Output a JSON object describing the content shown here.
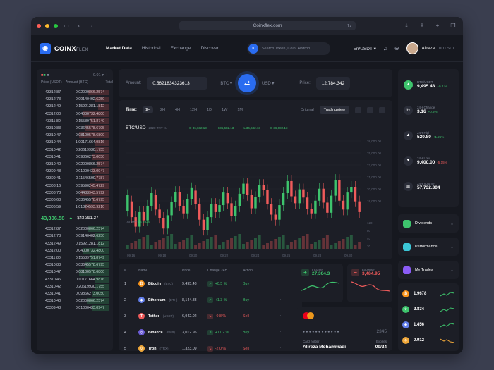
{
  "browser": {
    "url": "Coinxflex.com"
  },
  "brand": {
    "name": "COINX",
    "suffix": "FLEX"
  },
  "nav": {
    "items": [
      "Market Data",
      "Historical",
      "Exchange",
      "Discover"
    ],
    "active": 0
  },
  "search": {
    "placeholder": "Search Token, Coin, Airdrop"
  },
  "header": {
    "pair": "En/USDT",
    "username": "Alireza",
    "user_tag": "TID USDT"
  },
  "orderbook": {
    "precision": "0.01",
    "cols": [
      "Price (USDT)",
      "Amount (BTC)",
      "Total"
    ],
    "asks": [
      {
        "p": "43312.87",
        "a": "0.02000",
        "t": "866.2574",
        "d": 0.42
      },
      {
        "p": "43312.73",
        "a": "0.09140",
        "t": "402.6250",
        "d": 0.3
      },
      {
        "p": "43312.49",
        "a": "0.15921",
        "t": "281.1812",
        "d": 0.22
      },
      {
        "p": "43312.00",
        "a": "0.04000",
        "t": "732.4800",
        "d": 0.55
      },
      {
        "p": "43311.80",
        "a": "0.15589",
        "t": "751.8749",
        "d": 0.38
      },
      {
        "p": "43310.83",
        "a": "0.03645",
        "t": "578.6795",
        "d": 0.5
      },
      {
        "p": "43310.47",
        "a": "0.08100",
        "t": "578.6800",
        "d": 0.62
      },
      {
        "p": "43310.44",
        "a": "1.00171",
        "t": "664.9816",
        "d": 0.3
      },
      {
        "p": "43310.42",
        "a": "0.20619",
        "t": "930.1755",
        "d": 0.28
      },
      {
        "p": "43310.41",
        "a": "0.09866",
        "t": "273.0050",
        "d": 0.34
      },
      {
        "p": "43310.40",
        "a": "0.02000",
        "t": "866.2574",
        "d": 0.25
      },
      {
        "p": "43309.48",
        "a": "0.01000",
        "t": "433.0947",
        "d": 0.35
      },
      {
        "p": "43309.41",
        "a": "0.11546",
        "t": "500.7787",
        "d": 0.3
      },
      {
        "p": "43308.16",
        "a": "0.59590",
        "t": "245.4729",
        "d": 0.4
      },
      {
        "p": "43308.73",
        "a": "0.04483",
        "t": "943.5792",
        "d": 0.6
      },
      {
        "p": "43306.63",
        "a": "0.03645",
        "t": "578.6795",
        "d": 0.36
      },
      {
        "p": "43306.59",
        "a": "1.01324",
        "t": "593.9210",
        "d": 0.48
      }
    ],
    "last_price": "43,306.58",
    "last_usd": "$43,391.27",
    "bids": [
      {
        "p": "43312.87",
        "a": "0.02000",
        "t": "866.2574",
        "d": 0.42
      },
      {
        "p": "43312.73",
        "a": "0.09140",
        "t": "402.6250",
        "d": 0.3
      },
      {
        "p": "43312.49",
        "a": "0.15921",
        "t": "281.1812",
        "d": 0.22
      },
      {
        "p": "43312.00",
        "a": "0.04000",
        "t": "732.4800",
        "d": 0.55
      },
      {
        "p": "43311.80",
        "a": "0.15589",
        "t": "751.8749",
        "d": 0.38
      },
      {
        "p": "43310.83",
        "a": "0.03645",
        "t": "578.6795",
        "d": 0.5
      },
      {
        "p": "43310.47",
        "a": "0.08100",
        "t": "578.6800",
        "d": 0.62
      },
      {
        "p": "43310.46",
        "a": "0.01171",
        "t": "664.9816",
        "d": 0.3
      },
      {
        "p": "43310.42",
        "a": "0.20619",
        "t": "930.1755",
        "d": 0.28
      },
      {
        "p": "43310.41",
        "a": "0.09866",
        "t": "273.0050",
        "d": 0.34
      },
      {
        "p": "43310.40",
        "a": "0.02000",
        "t": "866.2574",
        "d": 0.45
      },
      {
        "p": "43309.48",
        "a": "0.01000",
        "t": "433.0947",
        "d": 0.35
      }
    ]
  },
  "converter": {
    "amount_label": "Amount:",
    "amount": "0.5621834323613",
    "from": "BTC",
    "to": "USD",
    "price_label": "Price:",
    "price": "12,784,342"
  },
  "chart": {
    "time_label": "Time:",
    "timeframes": [
      "1H",
      "2H",
      "4H",
      "12H",
      "1D",
      "1W",
      "1M"
    ],
    "active_tf": 0,
    "views": [
      "Original",
      "TradingView"
    ],
    "pair": "BTC/USD",
    "pair_sub": "2020 TRY %",
    "ohlc": [
      "O 36,682.13",
      "H 36,682.13",
      "L 36,682.13",
      "C 36,682.13"
    ],
    "vol_label": "Vol BTC",
    "vol_value": "65.2846",
    "y_ticks": [
      "38,000.00",
      "25,000.00",
      "22,000.00",
      "21,000.00",
      "20,000.00",
      "19,000.00"
    ],
    "vol_ticks": [
      "120",
      "80",
      "40",
      "20"
    ],
    "x_ticks": [
      "09.16",
      "09.18",
      "09.20",
      "09.22",
      "09.24",
      "09.26",
      "09.28",
      "09.30"
    ]
  },
  "chart_data": {
    "type": "candlestick",
    "ylim": [
      19000,
      38000
    ],
    "candles": [
      [
        24000,
        26500
      ],
      [
        25500,
        23000
      ],
      [
        23000,
        21500
      ],
      [
        21500,
        23800
      ],
      [
        23800,
        22500
      ],
      [
        22500,
        24800
      ],
      [
        24800,
        26800
      ],
      [
        26500,
        24200
      ],
      [
        24200,
        22900
      ],
      [
        22900,
        21200
      ],
      [
        21200,
        23300
      ],
      [
        23300,
        25400
      ],
      [
        25400,
        27000
      ],
      [
        27000,
        24800
      ],
      [
        24800,
        23600
      ],
      [
        23600,
        25800
      ],
      [
        25800,
        27600
      ],
      [
        27200,
        25100
      ],
      [
        25100,
        22600
      ],
      [
        22600,
        21000
      ],
      [
        21000,
        23000
      ],
      [
        23000,
        25100
      ],
      [
        25100,
        23800
      ],
      [
        23800,
        24900
      ],
      [
        24900,
        26900
      ],
      [
        26800,
        25200
      ],
      [
        25200,
        23200
      ],
      [
        23200,
        24700
      ],
      [
        24700,
        26700
      ],
      [
        26700,
        28300
      ],
      [
        28300,
        26500
      ],
      [
        26500,
        24400
      ],
      [
        24400,
        26200
      ],
      [
        26200,
        28100
      ],
      [
        28100,
        27300
      ],
      [
        27300,
        25100
      ],
      [
        25100,
        23400
      ],
      [
        23400,
        22600
      ],
      [
        22600,
        24900
      ],
      [
        24900,
        26800
      ],
      [
        26800,
        28700
      ],
      [
        28700,
        26300
      ],
      [
        26300,
        25200
      ],
      [
        25200,
        27400
      ],
      [
        27400,
        26100
      ],
      [
        26100,
        24300
      ],
      [
        24300,
        23600
      ],
      [
        23600,
        25600
      ],
      [
        25600,
        27500
      ],
      [
        27500,
        25300
      ],
      [
        25300,
        23700
      ],
      [
        23700,
        26400
      ],
      [
        26400,
        28900
      ],
      [
        28900,
        25600
      ],
      [
        25600,
        24200
      ],
      [
        24200,
        26900
      ],
      [
        26900,
        27800
      ],
      [
        27800,
        25500
      ],
      [
        25500,
        23800
      ]
    ]
  },
  "markets": {
    "headers": [
      "#",
      "Name",
      "Price",
      "Change 24H",
      "Action",
      ""
    ],
    "rows": [
      {
        "n": "1",
        "name": "Bitcoin",
        "sym": "(BTC)",
        "price": "9,495.48",
        "chg": "+0.5 %",
        "dir": "up",
        "action": "Buy",
        "color": "#f7931a",
        "glyph": "₿"
      },
      {
        "n": "2",
        "name": "Ethereum",
        "sym": "(ETH)",
        "price": "8,144.83",
        "chg": "+1.3 %",
        "dir": "up",
        "action": "Buy",
        "color": "#627eea",
        "glyph": "◆"
      },
      {
        "n": "3",
        "name": "Tether",
        "sym": "(USDT)",
        "price": "6,942.02",
        "chg": "-0.8 %",
        "dir": "dn",
        "action": "Sell",
        "color": "#ef5b5b",
        "glyph": "T"
      },
      {
        "n": "4",
        "name": "Binance",
        "sym": "(BNB)",
        "price": "3,012.95",
        "chg": "+1.02 %",
        "dir": "up",
        "action": "Buy",
        "color": "#6b5cd6",
        "glyph": "◇"
      },
      {
        "n": "5",
        "name": "Tron",
        "sym": "(TRX)",
        "price": "1,323.09",
        "chg": "-2.0 %",
        "dir": "dn",
        "action": "Sell",
        "color": "#f0a83a",
        "glyph": "▽"
      }
    ]
  },
  "income": {
    "label": "Income",
    "value": "27,304.3"
  },
  "expense": {
    "label": "Expense",
    "value": "3,484.95"
  },
  "card": {
    "dots": "● ● ● ●   ● ● ● ●   ● ● ● ●",
    "last4": "2345",
    "holder_label": "Card holder",
    "holder": "Alireza Mohammadi",
    "expires_label": "Expires",
    "expires": "09/24"
  },
  "stats": [
    {
      "label": "BTC/USDT",
      "value": "9,495.48",
      "chg": "+0.2 %",
      "dir": "up",
      "glyph": "▲"
    },
    {
      "label": "24H Change",
      "value": "3.16",
      "chg": "+0.6%",
      "dir": "up",
      "glyph": "↻"
    },
    {
      "label": "24H High",
      "value": "520.80",
      "chg": "+1.25%",
      "dir": "up",
      "glyph": "▲"
    },
    {
      "label": "24H Low",
      "value": "9,400.00",
      "chg": "-5.15%",
      "dir": "dn",
      "glyph": "▼"
    },
    {
      "label": "24H Volume",
      "value": "57,732.304",
      "chg": "",
      "dir": "up",
      "glyph": "▥"
    }
  ],
  "accordions": [
    {
      "label": "Dividends",
      "color": "#3ec46d"
    },
    {
      "label": "Performance",
      "color": "#3bc6d6"
    },
    {
      "label": "My Trades",
      "color": "#8b5cf6"
    }
  ],
  "holdings": [
    {
      "value": "1.9678",
      "color": "#f7931a",
      "glyph": "₿",
      "dir": "up"
    },
    {
      "value": "2.834",
      "color": "#3ec46d",
      "glyph": "⟐",
      "dir": "up"
    },
    {
      "value": "1.456",
      "color": "#627eea",
      "glyph": "◆",
      "dir": "up"
    },
    {
      "value": "0.912",
      "color": "#f0a83a",
      "glyph": "◇",
      "dir": "dn"
    }
  ]
}
